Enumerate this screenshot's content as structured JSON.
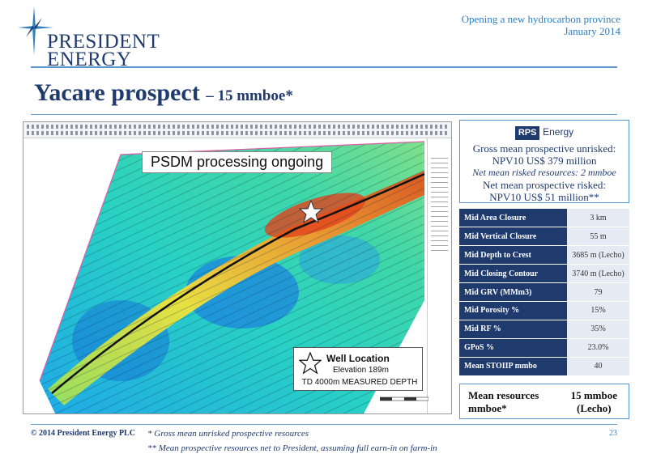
{
  "logo": {
    "line1": "PRESIDENT",
    "line2": "ENERGY"
  },
  "event": {
    "line1": "Opening a new hydrocarbon province",
    "line2": "January 2014"
  },
  "title": {
    "main": "Yacare prospect",
    "sub": "– 15 mmboe*"
  },
  "map": {
    "banner": "PSDM processing ongoing",
    "legend": {
      "title": "Well Location",
      "elevation": "Elevation 189m",
      "depth": "TD 4000m MEASURED DEPTH"
    }
  },
  "rps": {
    "logo_box": "RPS",
    "logo_text": "Energy",
    "line1": "Gross mean prospective unrisked:",
    "line2": "NPV10 US$ 379 million",
    "line3": "Net mean risked resources: 2 mmboe",
    "line4": "Net mean prospective risked:",
    "line5": "NPV10 US$ 51 million**"
  },
  "properties": [
    {
      "label": "Mid Area Closure",
      "value": "3 km"
    },
    {
      "label": "Mid Vertical Closure",
      "value": "55 m"
    },
    {
      "label": "Mid Depth to Crest",
      "value": "3685 m (Lecho)"
    },
    {
      "label": "Mid Closing Contour",
      "value": "3740 m (Lecho)"
    },
    {
      "label": "Mid GRV (MMm3)",
      "value": "79"
    },
    {
      "label": "Mid Porosity %",
      "value": "15%"
    },
    {
      "label": "Mid RF %",
      "value": "35%"
    },
    {
      "label": "GPoS %",
      "value": "23.0%"
    },
    {
      "label": "Mean STOIIP mmbo",
      "value": "40"
    }
  ],
  "mean_resources": {
    "label_line1": "Mean resources",
    "label_line2": "mmboe*",
    "value_line1": "15 mmboe",
    "value_line2": "(Lecho)"
  },
  "footer": {
    "copyright": "© 2014 President Energy PLC",
    "footnote1": "* Gross mean unrisked prospective resources",
    "footnote2": "** Mean prospective resources net to President, assuming full earn-in on farm-in",
    "page": "23"
  },
  "colors": {
    "navy": "#1f3b6e",
    "accent": "#2f7fc1"
  }
}
